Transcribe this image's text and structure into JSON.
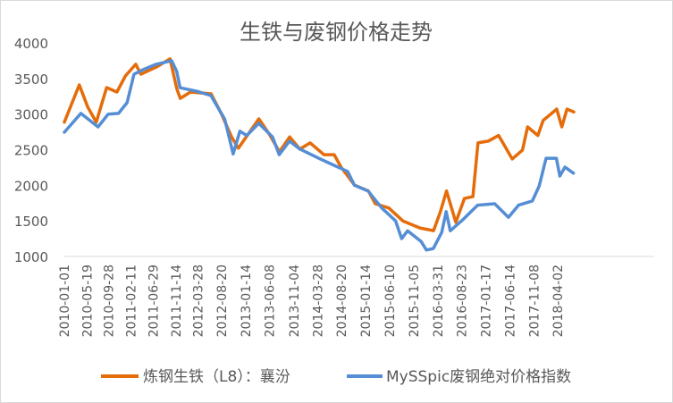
{
  "chart_data": {
    "type": "line",
    "title": "生铁与废钢价格走势",
    "xlabel": "",
    "ylabel": "",
    "ylim": [
      1000,
      4000
    ],
    "yticks": [
      "1000",
      "1500",
      "2000",
      "2500",
      "3000",
      "3500",
      "4000"
    ],
    "xticks": [
      "2010-01-01",
      "2010-05-19",
      "2010-09-28",
      "2011-02-11",
      "2011-06-29",
      "2011-11-14",
      "2012-03-28",
      "2012-08-20",
      "2013-01-14",
      "2013-06-08",
      "2013-11-04",
      "2014-03-28",
      "2014-08-20",
      "2015-01-14",
      "2015-06-10",
      "2015-11-05",
      "2016-03-31",
      "2016-08-23",
      "2017-01-17",
      "2017-06-14",
      "2017-11-08",
      "2018-04-02"
    ],
    "grid": false,
    "legend_position": "bottom",
    "series": [
      {
        "name": "炼钢生铁（L8）：襄汾",
        "color": "#E46C0A",
        "x": [
          "2010-01-01",
          "2010-04-02",
          "2010-05-24",
          "2010-07-15",
          "2010-09-16",
          "2010-11-18",
          "2011-01-09",
          "2011-03-13",
          "2011-04-13",
          "2011-07-16",
          "2011-10-08",
          "2011-11-20",
          "2011-12-10",
          "2012-02-10",
          "2012-06-15",
          "2012-08-16",
          "2012-10-18",
          "2012-11-29",
          "2013-04-03",
          "2013-06-05",
          "2013-08-07",
          "2013-10-08",
          "2013-12-09",
          "2014-02-10",
          "2014-05-05",
          "2014-07-07",
          "2014-08-18",
          "2014-11-09",
          "2015-02-01",
          "2015-03-15",
          "2015-06-06",
          "2015-08-30",
          "2015-12-12",
          "2016-03-05",
          "2016-04-16",
          "2016-05-23",
          "2016-07-19",
          "2016-09-09",
          "2016-10-31",
          "2016-12-01",
          "2017-02-02",
          "2017-04-06",
          "2017-06-28",
          "2017-08-30",
          "2017-09-30",
          "2017-12-02",
          "2018-01-03",
          "2018-03-27",
          "2018-04-27",
          "2018-05-29",
          "2018-07-09"
        ],
        "values": [
          2887,
          3410,
          3097,
          2887,
          3372,
          3310,
          3535,
          3700,
          3560,
          3660,
          3775,
          3350,
          3220,
          3310,
          3285,
          3010,
          2680,
          2520,
          2933,
          2720,
          2470,
          2680,
          2507,
          2595,
          2430,
          2430,
          2255,
          2000,
          1920,
          1740,
          1680,
          1500,
          1400,
          1363,
          1630,
          1920,
          1480,
          1815,
          1840,
          2595,
          2620,
          2700,
          2370,
          2495,
          2820,
          2700,
          2910,
          3070,
          2820,
          3070,
          3030
        ]
      },
      {
        "name": "MySSpic废钢绝对价格指数",
        "color": "#558ED5",
        "x": [
          "2010-01-01",
          "2010-04-12",
          "2010-07-26",
          "2010-09-26",
          "2010-11-28",
          "2011-01-19",
          "2011-03-02",
          "2011-04-23",
          "2011-07-16",
          "2011-10-18",
          "2011-11-18",
          "2011-12-09",
          "2012-03-22",
          "2012-06-14",
          "2012-09-06",
          "2012-10-28",
          "2012-12-08",
          "2013-01-19",
          "2013-04-02",
          "2013-06-25",
          "2013-08-05",
          "2013-10-07",
          "2013-12-08",
          "2014-04-13",
          "2014-07-06",
          "2014-09-27",
          "2014-11-08",
          "2015-01-30",
          "2015-04-24",
          "2015-07-17",
          "2015-08-23",
          "2015-09-28",
          "2015-12-20",
          "2016-01-21",
          "2016-03-03",
          "2016-04-24",
          "2016-05-21",
          "2016-06-15",
          "2016-09-06",
          "2016-11-29",
          "2017-03-13",
          "2017-06-05",
          "2017-08-06",
          "2017-10-29",
          "2017-12-10",
          "2018-01-21",
          "2018-03-25",
          "2018-04-15",
          "2018-05-16",
          "2018-07-07"
        ],
        "values": [
          2745,
          3010,
          2820,
          3000,
          3010,
          3160,
          3560,
          3620,
          3700,
          3750,
          3600,
          3370,
          3320,
          3260,
          2930,
          2440,
          2760,
          2700,
          2870,
          2680,
          2430,
          2620,
          2510,
          2370,
          2280,
          2195,
          2000,
          1920,
          1680,
          1500,
          1250,
          1360,
          1210,
          1090,
          1110,
          1340,
          1630,
          1360,
          1530,
          1720,
          1740,
          1550,
          1720,
          1780,
          1990,
          2380,
          2380,
          2130,
          2255,
          2170
        ]
      }
    ]
  }
}
